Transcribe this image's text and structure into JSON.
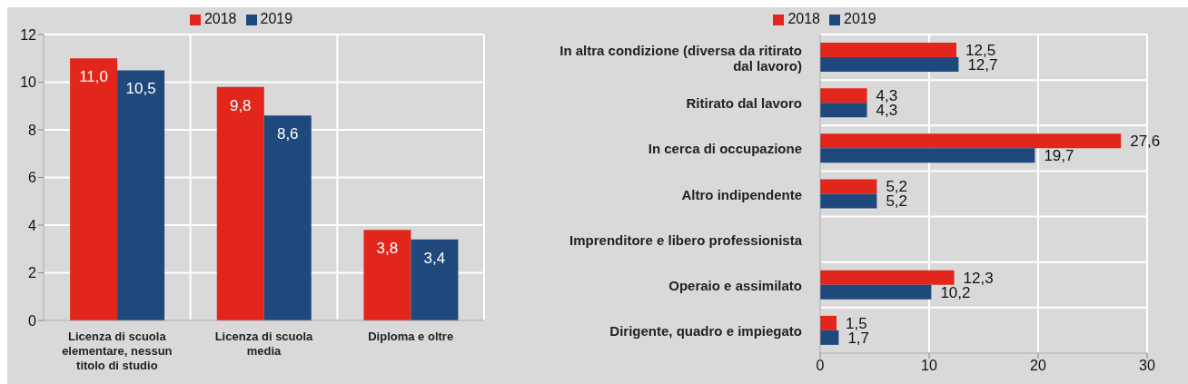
{
  "chart_data": [
    {
      "type": "bar",
      "categories": [
        "Licenza di scuola elementare, nessun titolo di studio",
        "Licenza di scuola media",
        "Diploma e oltre"
      ],
      "series": [
        {
          "name": "2018",
          "color": "#e2261b",
          "values": [
            11.0,
            9.8,
            3.8
          ],
          "value_labels": [
            "11,0",
            "9,8",
            "3,8"
          ]
        },
        {
          "name": "2019",
          "color": "#1f497d",
          "values": [
            10.5,
            8.6,
            3.4
          ],
          "value_labels": [
            "10,5",
            "8,6",
            "3,4"
          ]
        }
      ],
      "ylim": [
        0,
        12
      ],
      "yticks": [
        0,
        2,
        4,
        6,
        8,
        10,
        12
      ],
      "grid": true,
      "legend": "top"
    },
    {
      "type": "bar",
      "orientation": "horizontal",
      "categories": [
        "In altra condizione (diversa da ritirato dal lavoro)",
        "Ritirato dal lavoro",
        "In cerca di occupazione",
        "Altro indipendente",
        "Imprenditore e libero professionista",
        "Operaio e assimilato",
        "Dirigente, quadro e impiegato"
      ],
      "series": [
        {
          "name": "2018",
          "color": "#e2261b",
          "values": [
            12.5,
            4.3,
            27.6,
            5.2,
            null,
            12.3,
            1.5
          ],
          "value_labels": [
            "12,5",
            "4,3",
            "27,6",
            "5,2",
            null,
            "12,3",
            "1,5"
          ]
        },
        {
          "name": "2019",
          "color": "#1f497d",
          "values": [
            12.7,
            4.3,
            19.7,
            5.2,
            null,
            10.2,
            1.7
          ],
          "value_labels": [
            "12,7",
            "4,3",
            "19,7",
            "5,2",
            null,
            "10,2",
            "1,7"
          ]
        }
      ],
      "xlim": [
        0,
        30
      ],
      "xticks": [
        0,
        10,
        20,
        30
      ],
      "grid": true,
      "legend": "top"
    }
  ]
}
